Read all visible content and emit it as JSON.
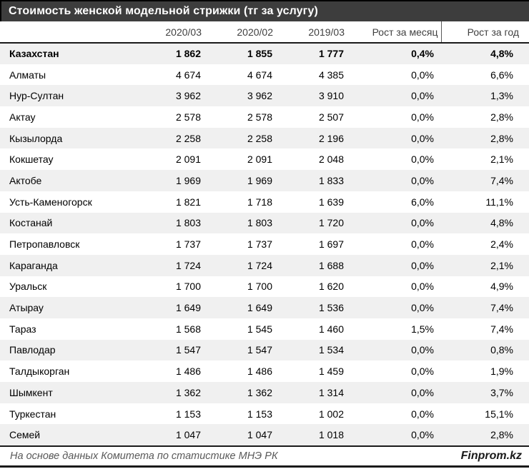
{
  "chart_data": {
    "type": "table",
    "title": "Стоимость женской модельной стрижки (тг за услугу)",
    "columns": [
      "",
      "2020/03",
      "2020/02",
      "2019/03",
      "Рост за месяц",
      "Рост за год"
    ],
    "rows": [
      {
        "city": "Казахстан",
        "v_2020_03": "1 862",
        "v_2020_02": "1 855",
        "v_2019_03": "1 777",
        "growth_month": "0,4%",
        "growth_year": "4,8%",
        "bold": true
      },
      {
        "city": "Алматы",
        "v_2020_03": "4 674",
        "v_2020_02": "4 674",
        "v_2019_03": "4 385",
        "growth_month": "0,0%",
        "growth_year": "6,6%",
        "bold": false
      },
      {
        "city": "Нур-Султан",
        "v_2020_03": "3 962",
        "v_2020_02": "3 962",
        "v_2019_03": "3 910",
        "growth_month": "0,0%",
        "growth_year": "1,3%",
        "bold": false
      },
      {
        "city": "Актау",
        "v_2020_03": "2 578",
        "v_2020_02": "2 578",
        "v_2019_03": "2 507",
        "growth_month": "0,0%",
        "growth_year": "2,8%",
        "bold": false
      },
      {
        "city": "Кызылорда",
        "v_2020_03": "2 258",
        "v_2020_02": "2 258",
        "v_2019_03": "2 196",
        "growth_month": "0,0%",
        "growth_year": "2,8%",
        "bold": false
      },
      {
        "city": "Кокшетау",
        "v_2020_03": "2 091",
        "v_2020_02": "2 091",
        "v_2019_03": "2 048",
        "growth_month": "0,0%",
        "growth_year": "2,1%",
        "bold": false
      },
      {
        "city": "Актобе",
        "v_2020_03": "1 969",
        "v_2020_02": "1 969",
        "v_2019_03": "1 833",
        "growth_month": "0,0%",
        "growth_year": "7,4%",
        "bold": false
      },
      {
        "city": "Усть-Каменогорск",
        "v_2020_03": "1 821",
        "v_2020_02": "1 718",
        "v_2019_03": "1 639",
        "growth_month": "6,0%",
        "growth_year": "11,1%",
        "bold": false
      },
      {
        "city": "Костанай",
        "v_2020_03": "1 803",
        "v_2020_02": "1 803",
        "v_2019_03": "1 720",
        "growth_month": "0,0%",
        "growth_year": "4,8%",
        "bold": false
      },
      {
        "city": "Петропавловск",
        "v_2020_03": "1 737",
        "v_2020_02": "1 737",
        "v_2019_03": "1 697",
        "growth_month": "0,0%",
        "growth_year": "2,4%",
        "bold": false
      },
      {
        "city": "Караганда",
        "v_2020_03": "1 724",
        "v_2020_02": "1 724",
        "v_2019_03": "1 688",
        "growth_month": "0,0%",
        "growth_year": "2,1%",
        "bold": false
      },
      {
        "city": "Уральск",
        "v_2020_03": "1 700",
        "v_2020_02": "1 700",
        "v_2019_03": "1 620",
        "growth_month": "0,0%",
        "growth_year": "4,9%",
        "bold": false
      },
      {
        "city": "Атырау",
        "v_2020_03": "1 649",
        "v_2020_02": "1 649",
        "v_2019_03": "1 536",
        "growth_month": "0,0%",
        "growth_year": "7,4%",
        "bold": false
      },
      {
        "city": "Тараз",
        "v_2020_03": "1 568",
        "v_2020_02": "1 545",
        "v_2019_03": "1 460",
        "growth_month": "1,5%",
        "growth_year": "7,4%",
        "bold": false
      },
      {
        "city": "Павлодар",
        "v_2020_03": "1 547",
        "v_2020_02": "1 547",
        "v_2019_03": "1 534",
        "growth_month": "0,0%",
        "growth_year": "0,8%",
        "bold": false
      },
      {
        "city": "Талдыкорган",
        "v_2020_03": "1 486",
        "v_2020_02": "1 486",
        "v_2019_03": "1 459",
        "growth_month": "0,0%",
        "growth_year": "1,9%",
        "bold": false
      },
      {
        "city": "Шымкент",
        "v_2020_03": "1 362",
        "v_2020_02": "1 362",
        "v_2019_03": "1 314",
        "growth_month": "0,0%",
        "growth_year": "3,7%",
        "bold": false
      },
      {
        "city": "Туркестан",
        "v_2020_03": "1 153",
        "v_2020_02": "1 153",
        "v_2019_03": "1 002",
        "growth_month": "0,0%",
        "growth_year": "15,1%",
        "bold": false
      },
      {
        "city": "Семей",
        "v_2020_03": "1 047",
        "v_2020_02": "1 047",
        "v_2019_03": "1 018",
        "growth_month": "0,0%",
        "growth_year": "2,8%",
        "bold": false
      }
    ]
  },
  "footer": {
    "source": "На основе данных Комитета по статистике МНЭ РК",
    "brand": "Finprom.kz"
  },
  "colors": {
    "title_bar": "#3d3d3d",
    "stripe": "#f0f0f0",
    "header_text": "#404040",
    "border": "#1a1a1a"
  }
}
